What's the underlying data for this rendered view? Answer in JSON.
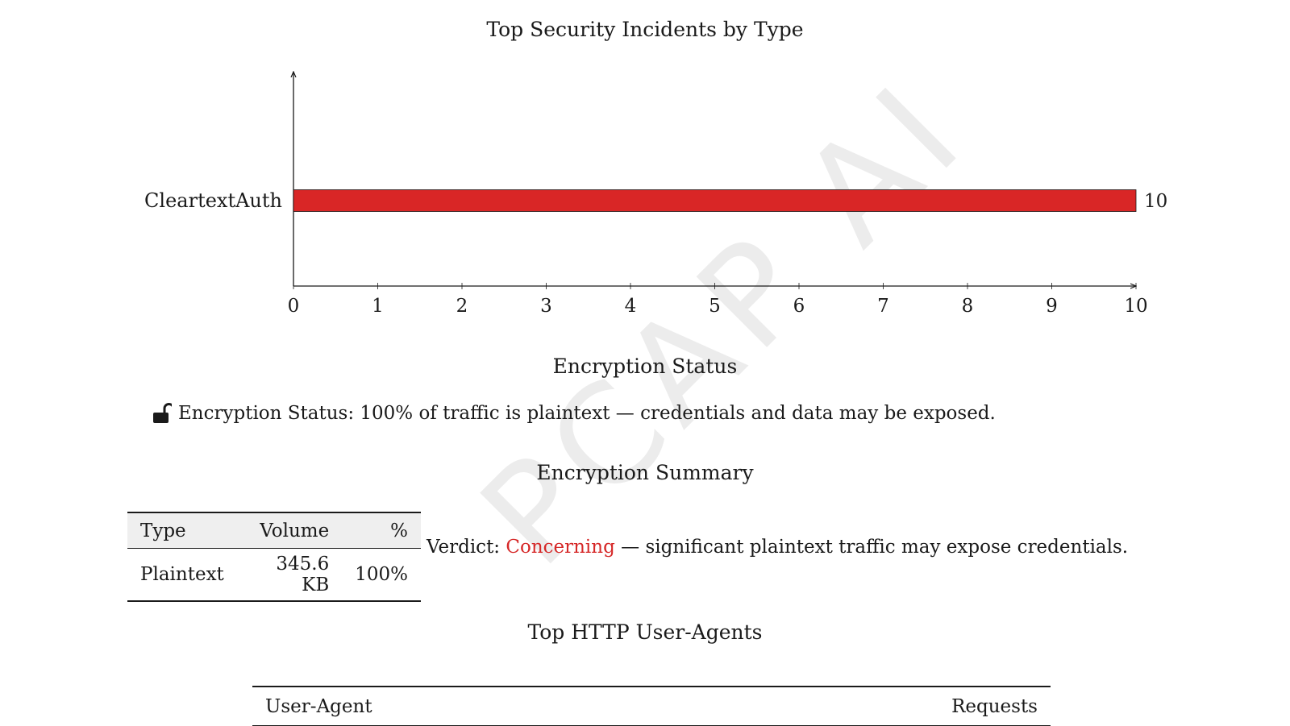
{
  "watermark": "PCAP AI",
  "chart_data": {
    "type": "bar",
    "orientation": "horizontal",
    "title": "Top Security Incidents by Type",
    "categories": [
      "CleartextAuth"
    ],
    "values": [
      10
    ],
    "data_labels": [
      "10"
    ],
    "xlim": [
      0,
      10
    ],
    "xticks": [
      "0",
      "1",
      "2",
      "3",
      "4",
      "5",
      "6",
      "7",
      "8",
      "9",
      "10"
    ],
    "xlabel": "",
    "ylabel": "",
    "grid": false,
    "bar_color": "#d92626"
  },
  "encryption": {
    "section_title": "Encryption Status",
    "status_icon": "unlocked-padlock-icon",
    "status_text": "Encryption Status: 100% of traffic is plaintext — credentials and data may be exposed."
  },
  "summary": {
    "section_title": "Encryption Summary",
    "headers": {
      "type": "Type",
      "volume": "Volume",
      "pct": "%"
    },
    "rows": [
      {
        "type": "Plaintext",
        "volume": "345.6 KB",
        "pct": "100%"
      }
    ],
    "verdict_label": "Verdict: ",
    "verdict_status": "Concerning",
    "verdict_status_color": "#d62828",
    "verdict_rest": " — significant plaintext traffic may expose credentials."
  },
  "user_agents": {
    "section_title": "Top HTTP User-Agents",
    "headers": {
      "agent": "User-Agent",
      "requests": "Requests"
    }
  }
}
